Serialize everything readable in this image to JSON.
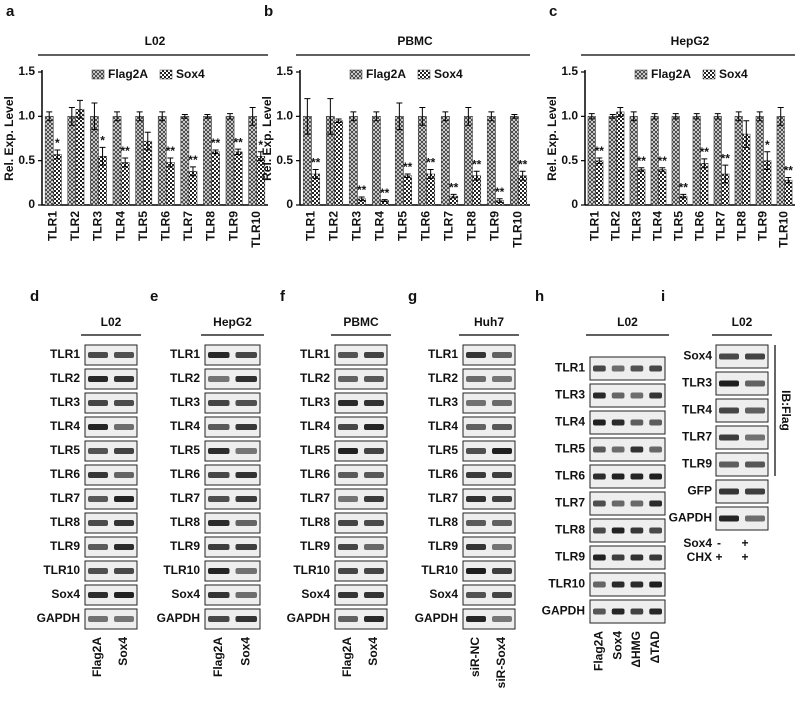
{
  "chart_data": [
    {
      "type": "bar",
      "panel": "a",
      "title": "L02",
      "y_label": "Rel. Exp. Level",
      "categories": [
        "TLR1",
        "TLR2",
        "TLR3",
        "TLR4",
        "TLR5",
        "TLR6",
        "TLR7",
        "TLR8",
        "TLR9",
        "TLR10"
      ],
      "series": [
        {
          "name": "Flag2A",
          "color": "#444444",
          "values": [
            1.0,
            1.0,
            1.0,
            1.0,
            1.0,
            1.0,
            1.0,
            1.0,
            1.0,
            1.0
          ],
          "errors": [
            0.05,
            0.1,
            0.15,
            0.05,
            0.05,
            0.05,
            0.02,
            0.02,
            0.03,
            0.1
          ]
        },
        {
          "name": "Sox4",
          "color": "#222222",
          "values": [
            0.57,
            1.08,
            0.55,
            0.48,
            0.72,
            0.48,
            0.38,
            0.6,
            0.6,
            0.55
          ],
          "errors": [
            0.05,
            0.1,
            0.1,
            0.05,
            0.1,
            0.05,
            0.05,
            0.02,
            0.03,
            0.05
          ],
          "significance": [
            "*",
            null,
            "*",
            "**",
            null,
            "**",
            "**",
            "**",
            "**",
            "*"
          ]
        }
      ],
      "ylim": [
        0,
        1.5
      ],
      "yticks": [
        0,
        0.5,
        {
          "value": 1,
          "label": "1.0"
        },
        1.5
      ],
      "legend": "top"
    },
    {
      "type": "bar",
      "panel": "b",
      "title": "PBMC",
      "y_label": "Rel. Exp. Level",
      "categories": [
        "TLR1",
        "TLR2",
        "TLR3",
        "TLR4",
        "TLR5",
        "TLR6",
        "TLR7",
        "TLR8",
        "TLR9",
        "TLR10"
      ],
      "series": [
        {
          "name": "Flag2A",
          "color": "#444444",
          "values": [
            1.0,
            1.0,
            1.0,
            1.0,
            1.0,
            1.0,
            1.0,
            1.0,
            1.0,
            1.0
          ],
          "errors": [
            0.2,
            0.2,
            0.05,
            0.05,
            0.15,
            0.1,
            0.05,
            0.1,
            0.05,
            0.02
          ]
        },
        {
          "name": "Sox4",
          "color": "#222222",
          "values": [
            0.35,
            0.95,
            0.07,
            0.05,
            0.33,
            0.35,
            0.1,
            0.33,
            0.05,
            0.33
          ],
          "errors": [
            0.05,
            0.02,
            0.02,
            0.01,
            0.02,
            0.05,
            0.02,
            0.05,
            0.02,
            0.05
          ],
          "significance": [
            "**",
            null,
            "**",
            "**",
            "**",
            "**",
            "**",
            "**",
            "**",
            "**"
          ]
        }
      ],
      "ylim": [
        0,
        1.5
      ],
      "yticks": [
        0,
        0.5,
        {
          "value": 1,
          "label": "1.0"
        },
        1.5
      ],
      "legend": "top"
    },
    {
      "type": "bar",
      "panel": "c",
      "title": "HepG2",
      "y_label": "Rel. Exp. Level",
      "categories": [
        "TLR1",
        "TLR2",
        "TLR3",
        "TLR4",
        "TLR5",
        "TLR6",
        "TLR7",
        "TLR8",
        "TLR9",
        "TLR10"
      ],
      "series": [
        {
          "name": "Flag2A",
          "color": "#444444",
          "values": [
            1.0,
            1.0,
            1.0,
            1.0,
            1.0,
            1.0,
            1.0,
            1.0,
            1.0,
            1.0
          ],
          "errors": [
            0.03,
            0.02,
            0.05,
            0.03,
            0.03,
            0.03,
            0.03,
            0.05,
            0.05,
            0.1
          ]
        },
        {
          "name": "Sox4",
          "color": "#222222",
          "values": [
            0.5,
            1.05,
            0.4,
            0.4,
            0.1,
            0.47,
            0.35,
            0.8,
            0.5,
            0.28
          ],
          "errors": [
            0.03,
            0.05,
            0.02,
            0.02,
            0.02,
            0.05,
            0.1,
            0.15,
            0.1,
            0.03
          ],
          "significance": [
            "**",
            null,
            "**",
            "**",
            "**",
            "**",
            "**",
            null,
            "*",
            "**"
          ]
        }
      ],
      "ylim": [
        0,
        1.5
      ],
      "yticks": [
        0,
        0.5,
        {
          "value": 1,
          "label": "1.0"
        },
        1.5
      ],
      "legend": "top"
    }
  ],
  "blots": [
    {
      "panel": "d",
      "title": "L02",
      "rows": [
        "TLR1",
        "TLR2",
        "TLR3",
        "TLR4",
        "TLR5",
        "TLR6",
        "TLR7",
        "TLR8",
        "TLR9",
        "TLR10",
        "Sox4",
        "GAPDH"
      ],
      "lanes": [
        "Flag2A",
        "Sox4"
      ]
    },
    {
      "panel": "e",
      "title": "HepG2",
      "rows": [
        "TLR1",
        "TLR2",
        "TLR3",
        "TLR4",
        "TLR5",
        "TLR6",
        "TLR7",
        "TLR8",
        "TLR9",
        "TLR10",
        "Sox4",
        "GAPDH"
      ],
      "lanes": [
        "Flag2A",
        "Sox4"
      ]
    },
    {
      "panel": "f",
      "title": "PBMC",
      "rows": [
        "TLR1",
        "TLR2",
        "TLR3",
        "TLR4",
        "TLR5",
        "TLR6",
        "TLR7",
        "TLR8",
        "TLR9",
        "TLR10",
        "Sox4",
        "GAPDH"
      ],
      "lanes": [
        "Flag2A",
        "Sox4"
      ]
    },
    {
      "panel": "g",
      "title": "Huh7",
      "rows": [
        "TLR1",
        "TLR2",
        "TLR3",
        "TLR4",
        "TLR5",
        "TLR6",
        "TLR7",
        "TLR8",
        "TLR9",
        "TLR10",
        "Sox4",
        "GAPDH"
      ],
      "lanes": [
        "siR-NC",
        "siR-Sox4"
      ]
    },
    {
      "panel": "h",
      "title": "L02",
      "rows": [
        "TLR1",
        "TLR3",
        "TLR4",
        "TLR5",
        "TLR6",
        "TLR7",
        "TLR8",
        "TLR9",
        "TLR10",
        "GAPDH"
      ],
      "lanes": [
        "Flag2A",
        "Sox4",
        "ΔHMG",
        "ΔTAD"
      ]
    },
    {
      "panel": "i",
      "title": "L02",
      "rows": [
        "Sox4",
        "TLR3",
        "TLR4",
        "TLR7",
        "TLR9",
        "GFP",
        "GAPDH"
      ],
      "side_label": "IB:Flag",
      "conditions": [
        {
          "name": "Sox4",
          "values": [
            "-",
            "+"
          ]
        },
        {
          "name": "CHX",
          "values": [
            "+",
            "+"
          ]
        }
      ]
    }
  ]
}
